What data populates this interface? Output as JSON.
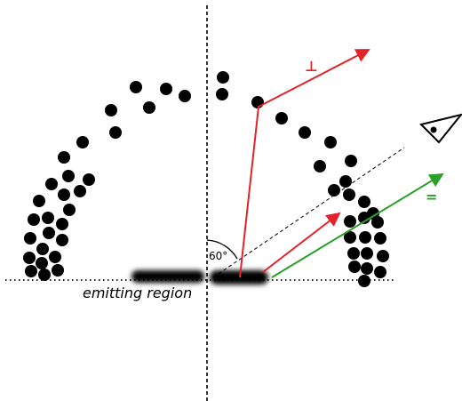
{
  "labels": {
    "angle": "60°",
    "perp": "⊥",
    "parallel": "=",
    "region": "emitting region"
  },
  "colors": {
    "dots": "#000000",
    "perp_ray": "#e0242a",
    "parallel_ray": "#2aa02a",
    "axis": "#000000"
  },
  "icons": {
    "observer": "eye-icon"
  }
}
